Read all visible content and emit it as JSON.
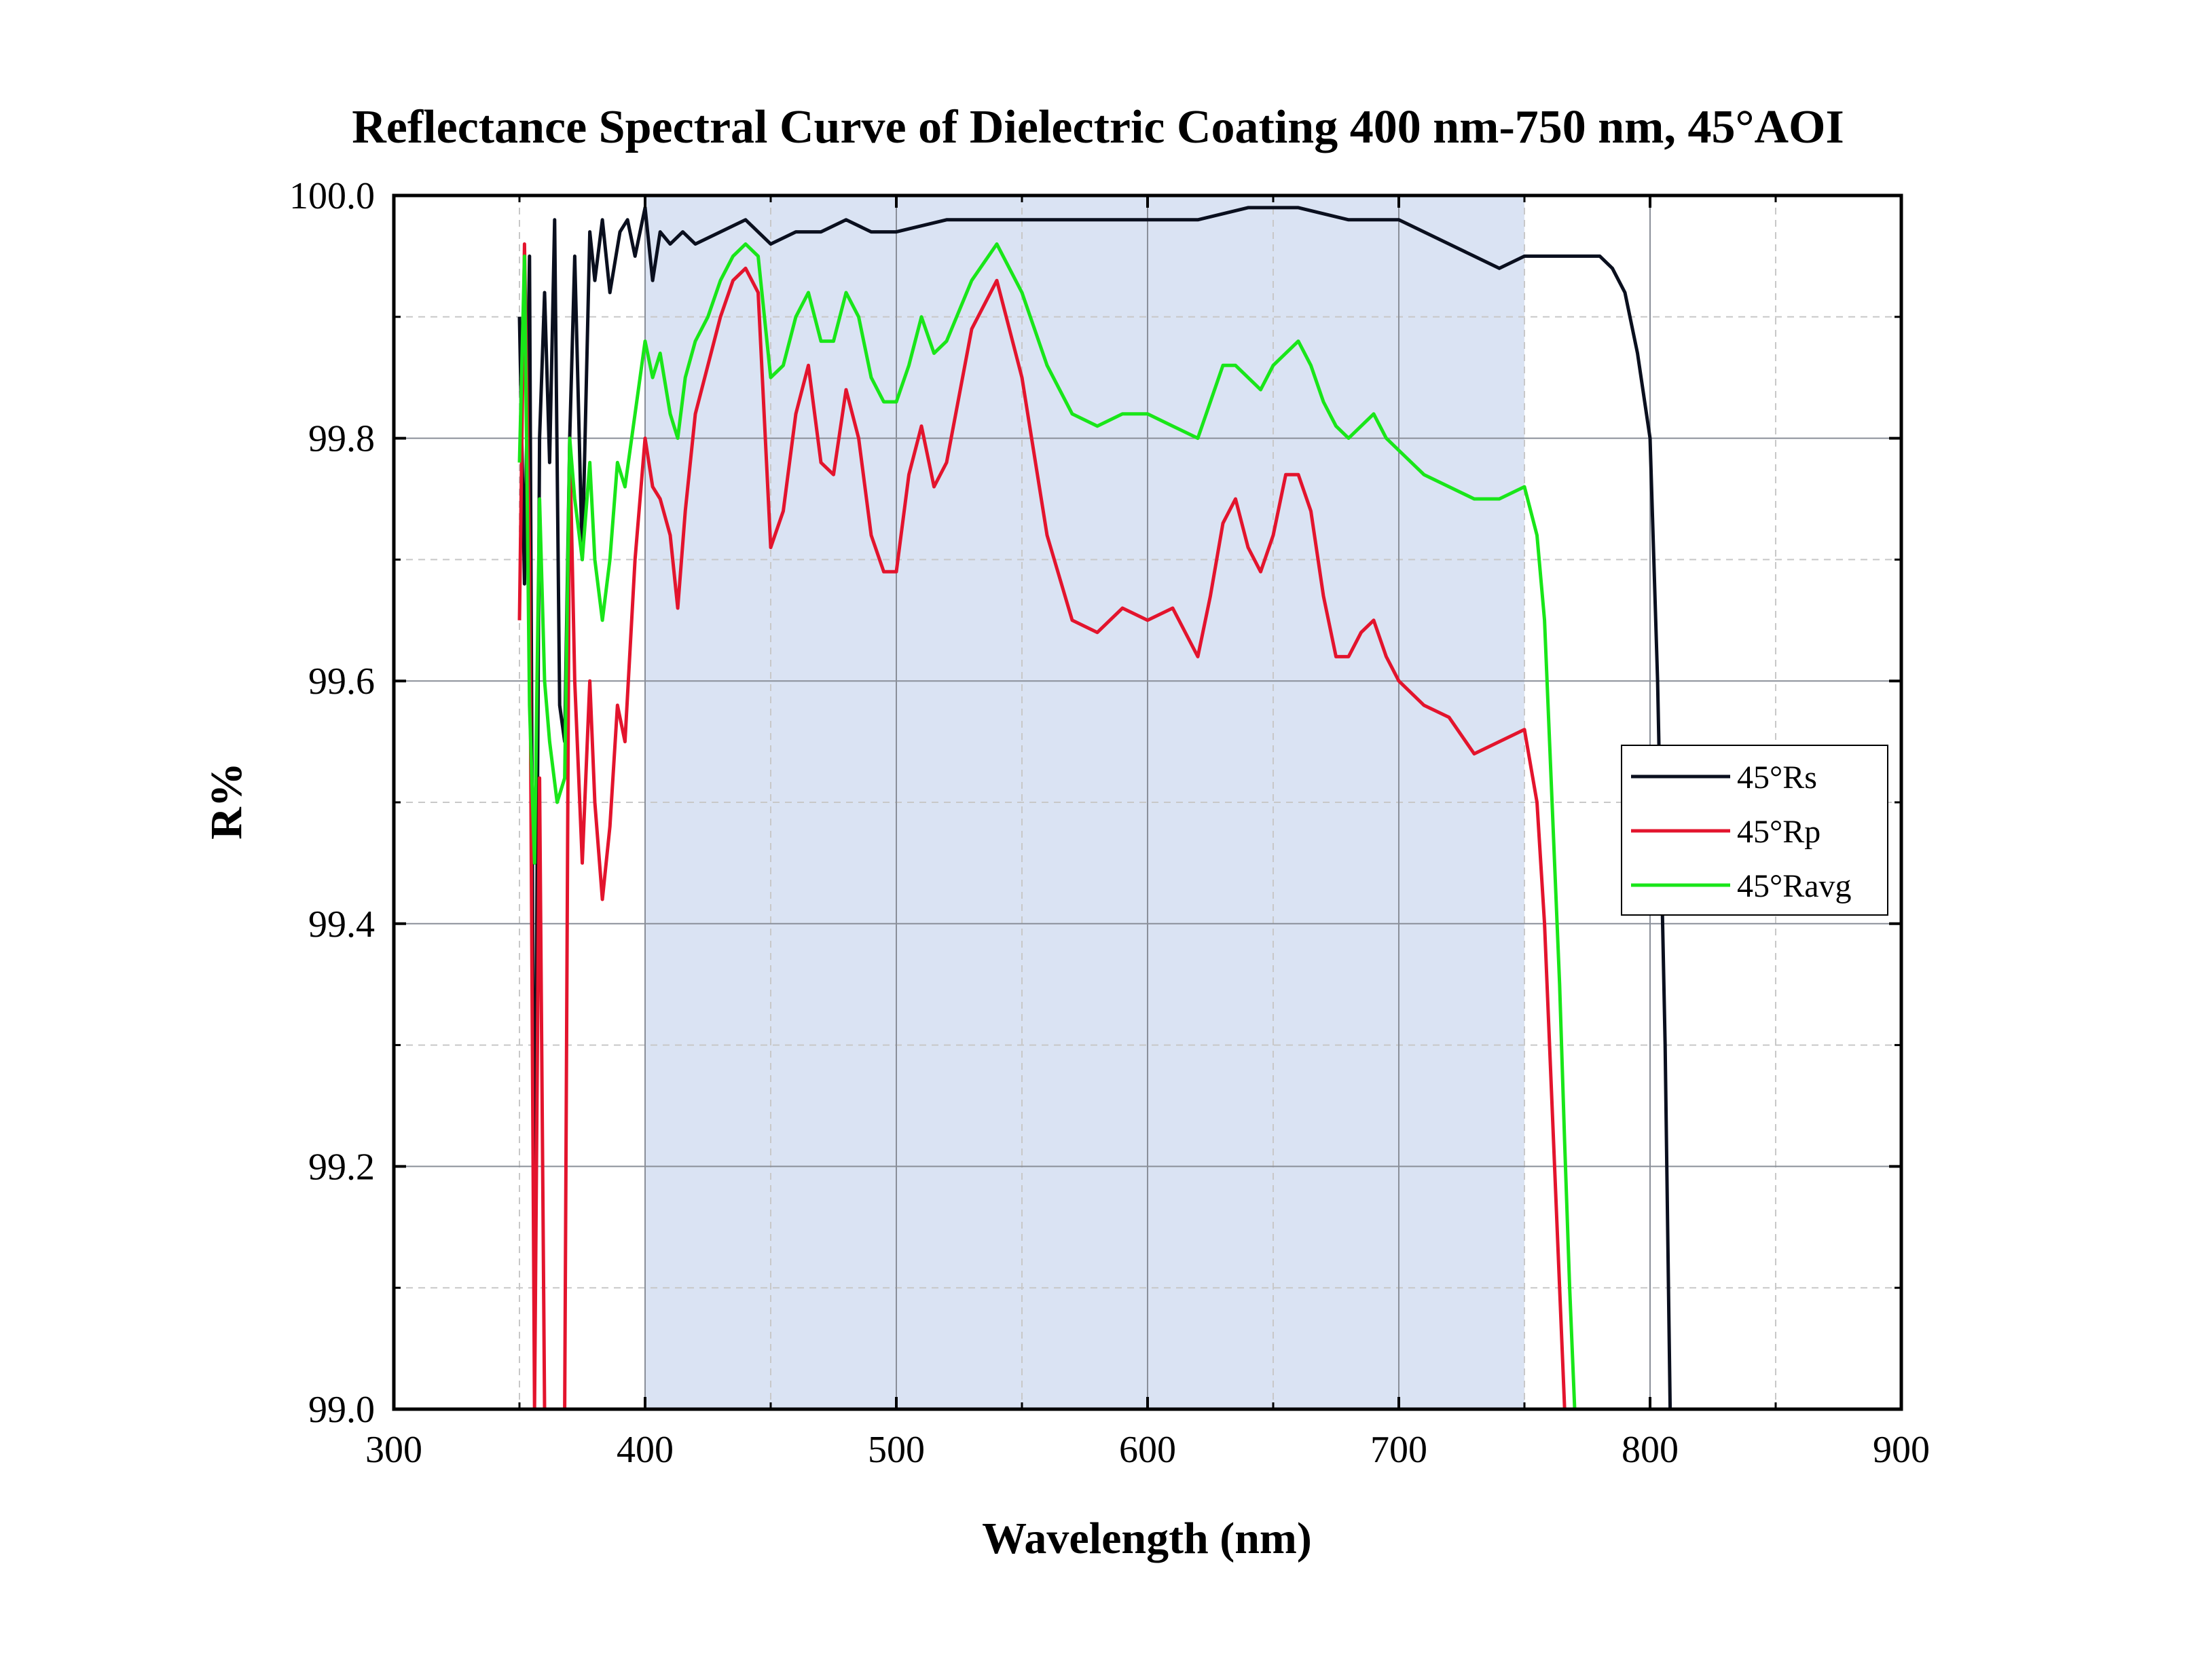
{
  "chart_data": {
    "type": "line",
    "title": "Reflectance Spectral Curve of Dielectric Coating 400 nm-750 nm,  45°AOI",
    "xlabel": "Wavelength (nm)",
    "ylabel": "R%",
    "xlim": [
      300,
      900
    ],
    "ylim": [
      99.0,
      100.0
    ],
    "x_ticks": [
      "300",
      "400",
      "500",
      "600",
      "700",
      "800",
      "900"
    ],
    "y_ticks": [
      "99.0",
      "99.2",
      "99.4",
      "99.6",
      "99.8",
      "100.0"
    ],
    "grid": true,
    "shaded_band": {
      "x_start": 400,
      "x_end": 750,
      "color": "#dae3f3"
    },
    "legend_position": "right",
    "series": [
      {
        "name": "45°Rs",
        "color": "#0a0f1e",
        "x": [
          350,
          352,
          354,
          356,
          358,
          360,
          362,
          364,
          366,
          368,
          370,
          372,
          375,
          378,
          380,
          383,
          386,
          390,
          393,
          396,
          400,
          403,
          406,
          410,
          415,
          420,
          430,
          440,
          450,
          460,
          470,
          480,
          490,
          500,
          520,
          540,
          560,
          580,
          600,
          620,
          640,
          660,
          680,
          700,
          710,
          720,
          730,
          740,
          750,
          760,
          770,
          780,
          785,
          790,
          795,
          800,
          803,
          806,
          808,
          810
        ],
        "y": [
          99.9,
          99.68,
          99.95,
          99.08,
          99.8,
          99.92,
          99.78,
          99.98,
          99.58,
          99.55,
          99.8,
          99.95,
          99.7,
          99.97,
          99.93,
          99.98,
          99.92,
          99.97,
          99.98,
          99.95,
          99.99,
          99.93,
          99.97,
          99.96,
          99.97,
          99.96,
          99.97,
          99.98,
          99.96,
          99.97,
          99.97,
          99.98,
          99.97,
          99.97,
          99.98,
          99.98,
          99.98,
          99.98,
          99.98,
          99.98,
          99.99,
          99.99,
          99.98,
          99.98,
          99.97,
          99.96,
          99.95,
          99.94,
          99.95,
          99.95,
          99.95,
          99.95,
          99.94,
          99.92,
          99.87,
          99.8,
          99.6,
          99.3,
          99.0,
          99.0
        ]
      },
      {
        "name": "45°Rp",
        "color": "#e3142d",
        "x": [
          350,
          352,
          354,
          356,
          358,
          360,
          362,
          365,
          368,
          370,
          372,
          375,
          378,
          380,
          383,
          386,
          389,
          392,
          396,
          400,
          403,
          406,
          410,
          413,
          416,
          420,
          425,
          430,
          435,
          440,
          445,
          450,
          455,
          460,
          465,
          470,
          475,
          480,
          485,
          490,
          495,
          500,
          505,
          510,
          515,
          520,
          530,
          540,
          550,
          560,
          570,
          580,
          590,
          600,
          610,
          620,
          625,
          630,
          635,
          640,
          645,
          650,
          655,
          660,
          665,
          670,
          675,
          680,
          685,
          690,
          695,
          700,
          710,
          720,
          730,
          740,
          750,
          755,
          758,
          760,
          762,
          764,
          766
        ],
        "y": [
          99.65,
          99.96,
          99.7,
          99.0,
          99.52,
          99.0,
          99.0,
          99.0,
          99.0,
          99.8,
          99.6,
          99.45,
          99.6,
          99.5,
          99.42,
          99.48,
          99.58,
          99.55,
          99.7,
          99.8,
          99.76,
          99.75,
          99.72,
          99.66,
          99.74,
          99.82,
          99.86,
          99.9,
          99.93,
          99.94,
          99.92,
          99.71,
          99.74,
          99.82,
          99.86,
          99.78,
          99.77,
          99.84,
          99.8,
          99.72,
          99.69,
          99.69,
          99.77,
          99.81,
          99.76,
          99.78,
          99.89,
          99.93,
          99.85,
          99.72,
          99.65,
          99.64,
          99.66,
          99.65,
          99.66,
          99.62,
          99.67,
          99.73,
          99.75,
          99.71,
          99.69,
          99.72,
          99.77,
          99.77,
          99.74,
          99.67,
          99.62,
          99.62,
          99.64,
          99.65,
          99.62,
          99.6,
          99.58,
          99.57,
          99.54,
          99.55,
          99.56,
          99.5,
          99.4,
          99.3,
          99.2,
          99.1,
          99.0
        ]
      },
      {
        "name": "45°Ravg",
        "color": "#19e619",
        "x": [
          350,
          352,
          354,
          356,
          358,
          360,
          362,
          365,
          368,
          370,
          372,
          375,
          378,
          380,
          383,
          386,
          389,
          392,
          396,
          400,
          403,
          406,
          410,
          413,
          416,
          420,
          425,
          430,
          435,
          440,
          445,
          450,
          455,
          460,
          465,
          470,
          475,
          480,
          485,
          490,
          495,
          500,
          505,
          510,
          515,
          520,
          530,
          540,
          550,
          560,
          570,
          580,
          590,
          600,
          610,
          620,
          625,
          630,
          635,
          640,
          645,
          650,
          655,
          660,
          665,
          670,
          675,
          680,
          685,
          690,
          695,
          700,
          710,
          720,
          730,
          740,
          750,
          755,
          758,
          760,
          762,
          764,
          766,
          768,
          770
        ],
        "y": [
          99.78,
          99.95,
          99.58,
          99.45,
          99.75,
          99.6,
          99.55,
          99.5,
          99.52,
          99.8,
          99.75,
          99.7,
          99.78,
          99.7,
          99.65,
          99.7,
          99.78,
          99.76,
          99.82,
          99.88,
          99.85,
          99.87,
          99.82,
          99.8,
          99.85,
          99.88,
          99.9,
          99.93,
          99.95,
          99.96,
          99.95,
          99.85,
          99.86,
          99.9,
          99.92,
          99.88,
          99.88,
          99.92,
          99.9,
          99.85,
          99.83,
          99.83,
          99.86,
          99.9,
          99.87,
          99.88,
          99.93,
          99.96,
          99.92,
          99.86,
          99.82,
          99.81,
          99.82,
          99.82,
          99.81,
          99.8,
          99.83,
          99.86,
          99.86,
          99.85,
          99.84,
          99.86,
          99.87,
          99.88,
          99.86,
          99.83,
          99.81,
          99.8,
          99.81,
          99.82,
          99.8,
          99.79,
          99.77,
          99.76,
          99.75,
          99.75,
          99.76,
          99.72,
          99.65,
          99.55,
          99.45,
          99.35,
          99.22,
          99.1,
          99.0
        ]
      }
    ]
  }
}
